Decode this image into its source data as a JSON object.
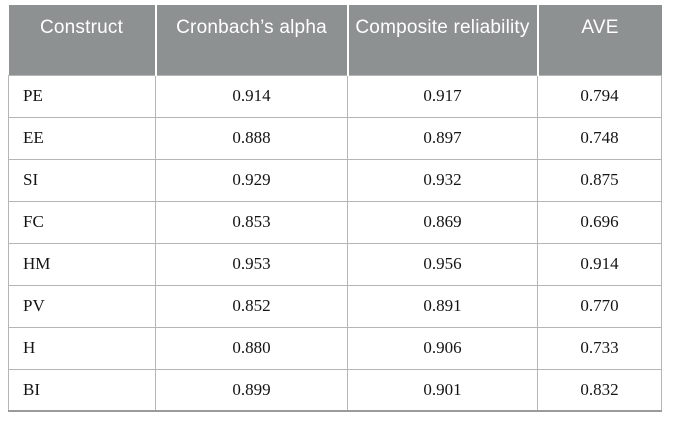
{
  "table": {
    "columns": [
      "Construct",
      "Cronbach’s alpha",
      "Composite reliability",
      "AVE"
    ],
    "rows": [
      [
        "PE",
        "0.914",
        "0.917",
        "0.794"
      ],
      [
        "EE",
        "0.888",
        "0.897",
        "0.748"
      ],
      [
        "SI",
        "0.929",
        "0.932",
        "0.875"
      ],
      [
        "FC",
        "0.853",
        "0.869",
        "0.696"
      ],
      [
        "HM",
        "0.953",
        "0.956",
        "0.914"
      ],
      [
        "PV",
        "0.852",
        "0.891",
        "0.770"
      ],
      [
        "H",
        "0.880",
        "0.906",
        "0.733"
      ],
      [
        "BI",
        "0.899",
        "0.901",
        "0.832"
      ]
    ]
  },
  "colors": {
    "header_bg": "#8d9192",
    "header_text": "#ffffff",
    "body_text": "#141414",
    "grid_line": "#b4b6b6",
    "outer_bottom_border": "#9a9c9c"
  }
}
